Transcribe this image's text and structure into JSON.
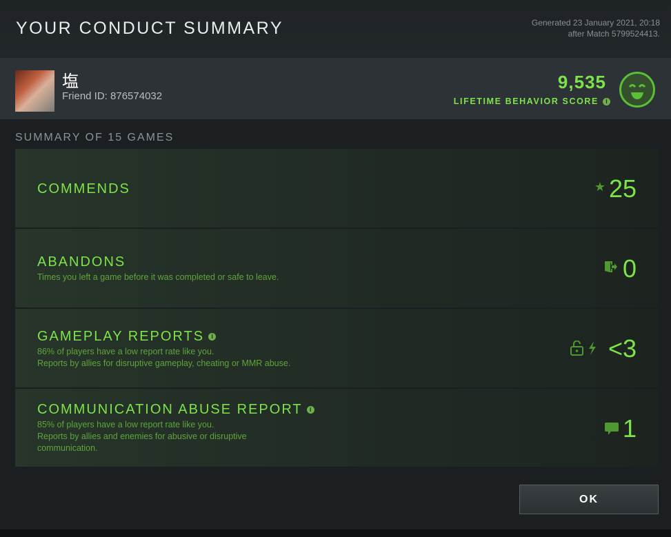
{
  "header": {
    "title": "YOUR CONDUCT SUMMARY",
    "generated": "Generated 23 January 2021, 20:18",
    "after_match": "after Match 5799524413."
  },
  "profile": {
    "name": "塩",
    "friend_id": "Friend ID: 876574032",
    "score": "9,535",
    "score_label": "LIFETIME BEHAVIOR SCORE",
    "face_icon": "smile-face-icon"
  },
  "summary_label": "SUMMARY OF 15 GAMES",
  "rows": [
    {
      "title": "COMMENDS",
      "desc1": "",
      "desc2": "",
      "value": "25",
      "icon": "star-thumb-icon"
    },
    {
      "title": "ABANDONS",
      "desc1": "Times you left a game before it was completed or safe to leave.",
      "desc2": "",
      "value": "0",
      "icon": "door-exit-icon"
    },
    {
      "title": "GAMEPLAY REPORTS",
      "desc1": "86% of players have a low report rate like you.",
      "desc2": "Reports by allies for disruptive gameplay, cheating or MMR abuse.",
      "value": "<3",
      "icon": "lock-lightning-icon"
    },
    {
      "title": "COMMUNICATION ABUSE REPORT",
      "desc1": "85% of players have a low report rate like you.",
      "desc2": "Reports by allies and enemies for abusive or disruptive",
      "desc3": "communication.",
      "value": "1",
      "icon": "chat-bubble-icon"
    }
  ],
  "ok_label": "OK",
  "colors": {
    "accent": "#7ee34a",
    "icon": "#4f9a30"
  }
}
